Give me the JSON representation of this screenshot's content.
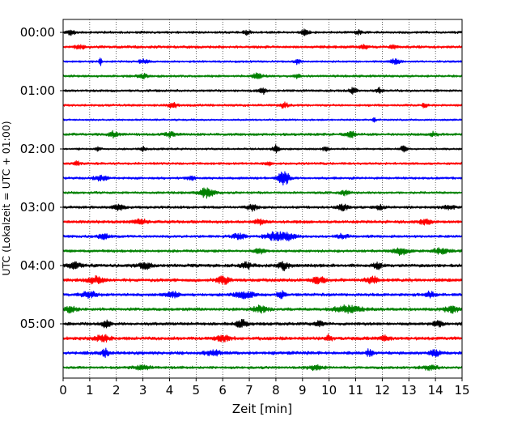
{
  "chart_data": {
    "type": "line",
    "subtype": "helicorder",
    "title": "",
    "xlabel": "Zeit  [min]",
    "ylabel": "UTC (Lokalzeit = UTC + 01:00)",
    "xlim": [
      0,
      15
    ],
    "x_ticks": [
      0,
      1,
      2,
      3,
      4,
      5,
      6,
      7,
      8,
      9,
      10,
      11,
      12,
      13,
      14,
      15
    ],
    "x_tick_labels": [
      "0",
      "1",
      "2",
      "3",
      "4",
      "5",
      "6",
      "7",
      "8",
      "9",
      "10",
      "11",
      "12",
      "13",
      "14",
      "15"
    ],
    "grid": {
      "vertical": true,
      "style": "dotted"
    },
    "y_tick_labels": [
      {
        "label": "00:00",
        "row": 0
      },
      {
        "label": "01:00",
        "row": 4
      },
      {
        "label": "02:00",
        "row": 8
      },
      {
        "label": "03:00",
        "row": 12
      },
      {
        "label": "04:00",
        "row": 16
      },
      {
        "label": "05:00",
        "row": 20
      }
    ],
    "row_minutes": 15,
    "color_cycle": [
      "#000000",
      "#ff0000",
      "#0000ff",
      "#008000"
    ],
    "rows": [
      {
        "start": "00:00",
        "color": "#000000",
        "base_amp": 1.6,
        "events": [
          [
            0.3,
            2.5,
            0.18
          ],
          [
            6.9,
            3.0,
            0.12
          ],
          [
            9.1,
            3.5,
            0.15
          ],
          [
            11.1,
            2.5,
            0.12
          ]
        ]
      },
      {
        "start": "00:15",
        "color": "#ff0000",
        "base_amp": 1.8,
        "events": [
          [
            0.6,
            2.0,
            0.2
          ],
          [
            11.3,
            3.0,
            0.15
          ],
          [
            12.4,
            2.5,
            0.12
          ]
        ]
      },
      {
        "start": "00:30",
        "color": "#0000ff",
        "base_amp": 1.4,
        "events": [
          [
            1.4,
            4.0,
            0.06
          ],
          [
            3.0,
            2.5,
            0.2
          ],
          [
            8.8,
            3.0,
            0.1
          ],
          [
            12.5,
            2.5,
            0.2
          ]
        ]
      },
      {
        "start": "00:45",
        "color": "#008000",
        "base_amp": 1.6,
        "events": [
          [
            3.0,
            2.5,
            0.2
          ],
          [
            7.3,
            3.0,
            0.2
          ],
          [
            8.8,
            2.5,
            0.1
          ]
        ]
      },
      {
        "start": "01:00",
        "color": "#000000",
        "base_amp": 1.6,
        "events": [
          [
            7.5,
            3.5,
            0.15
          ],
          [
            10.9,
            3.5,
            0.15
          ],
          [
            11.9,
            3.0,
            0.12
          ]
        ]
      },
      {
        "start": "01:15",
        "color": "#ff0000",
        "base_amp": 1.6,
        "events": [
          [
            4.1,
            3.0,
            0.18
          ],
          [
            8.3,
            3.0,
            0.15
          ],
          [
            13.6,
            2.5,
            0.12
          ]
        ]
      },
      {
        "start": "01:30",
        "color": "#0000ff",
        "base_amp": 1.2,
        "events": [
          [
            11.7,
            3.0,
            0.05
          ]
        ]
      },
      {
        "start": "01:45",
        "color": "#008000",
        "base_amp": 1.8,
        "events": [
          [
            1.9,
            3.5,
            0.2
          ],
          [
            4.0,
            2.5,
            0.2
          ],
          [
            10.8,
            3.5,
            0.2
          ],
          [
            13.9,
            2.5,
            0.15
          ]
        ]
      },
      {
        "start": "02:00",
        "color": "#000000",
        "base_amp": 1.4,
        "events": [
          [
            1.3,
            3.0,
            0.1
          ],
          [
            3.0,
            3.0,
            0.1
          ],
          [
            8.0,
            4.0,
            0.12
          ],
          [
            9.9,
            3.0,
            0.12
          ],
          [
            12.8,
            3.5,
            0.12
          ]
        ]
      },
      {
        "start": "02:15",
        "color": "#ff0000",
        "base_amp": 1.6,
        "events": [
          [
            0.5,
            2.5,
            0.15
          ],
          [
            7.7,
            2.5,
            0.12
          ]
        ]
      },
      {
        "start": "02:30",
        "color": "#0000ff",
        "base_amp": 1.6,
        "events": [
          [
            1.4,
            3.0,
            0.25
          ],
          [
            4.8,
            2.5,
            0.15
          ],
          [
            8.3,
            8.0,
            0.22
          ]
        ]
      },
      {
        "start": "02:45",
        "color": "#008000",
        "base_amp": 1.6,
        "events": [
          [
            5.4,
            5.5,
            0.3
          ],
          [
            10.6,
            2.5,
            0.2
          ]
        ]
      },
      {
        "start": "03:00",
        "color": "#000000",
        "base_amp": 1.8,
        "events": [
          [
            2.1,
            3.5,
            0.2
          ],
          [
            7.1,
            3.5,
            0.2
          ],
          [
            10.5,
            3.5,
            0.2
          ],
          [
            11.9,
            3.0,
            0.15
          ],
          [
            14.5,
            3.0,
            0.2
          ]
        ]
      },
      {
        "start": "03:15",
        "color": "#ff0000",
        "base_amp": 2.0,
        "events": [
          [
            2.9,
            3.0,
            0.25
          ],
          [
            7.4,
            3.0,
            0.2
          ],
          [
            13.6,
            3.0,
            0.2
          ]
        ]
      },
      {
        "start": "03:30",
        "color": "#0000ff",
        "base_amp": 1.8,
        "events": [
          [
            1.5,
            3.0,
            0.2
          ],
          [
            6.6,
            3.5,
            0.25
          ],
          [
            7.9,
            4.5,
            0.3
          ],
          [
            8.4,
            4.5,
            0.3
          ],
          [
            10.5,
            3.0,
            0.2
          ]
        ]
      },
      {
        "start": "03:45",
        "color": "#008000",
        "base_amp": 1.8,
        "events": [
          [
            7.4,
            3.0,
            0.2
          ],
          [
            12.7,
            4.0,
            0.3
          ],
          [
            14.2,
            3.5,
            0.3
          ]
        ]
      },
      {
        "start": "04:00",
        "color": "#000000",
        "base_amp": 2.2,
        "events": [
          [
            0.4,
            3.5,
            0.25
          ],
          [
            3.1,
            3.5,
            0.25
          ],
          [
            6.9,
            3.5,
            0.2
          ],
          [
            8.3,
            4.5,
            0.2
          ],
          [
            11.8,
            4.0,
            0.15
          ]
        ]
      },
      {
        "start": "04:15",
        "color": "#ff0000",
        "base_amp": 2.2,
        "events": [
          [
            1.2,
            4.0,
            0.3
          ],
          [
            6.0,
            4.0,
            0.25
          ],
          [
            9.6,
            3.5,
            0.25
          ],
          [
            11.6,
            3.5,
            0.25
          ]
        ]
      },
      {
        "start": "04:30",
        "color": "#0000ff",
        "base_amp": 2.0,
        "events": [
          [
            1.0,
            3.5,
            0.3
          ],
          [
            4.1,
            3.5,
            0.25
          ],
          [
            6.8,
            3.5,
            0.4
          ],
          [
            8.2,
            4.0,
            0.15
          ],
          [
            13.8,
            3.0,
            0.2
          ]
        ]
      },
      {
        "start": "04:45",
        "color": "#008000",
        "base_amp": 2.0,
        "events": [
          [
            0.3,
            3.5,
            0.25
          ],
          [
            7.4,
            3.5,
            0.3
          ],
          [
            10.7,
            4.0,
            0.5
          ],
          [
            14.6,
            3.5,
            0.3
          ]
        ]
      },
      {
        "start": "05:00",
        "color": "#000000",
        "base_amp": 2.0,
        "events": [
          [
            1.6,
            3.5,
            0.2
          ],
          [
            6.7,
            4.5,
            0.2
          ],
          [
            9.6,
            4.0,
            0.15
          ],
          [
            14.1,
            3.0,
            0.2
          ]
        ]
      },
      {
        "start": "05:15",
        "color": "#ff0000",
        "base_amp": 2.2,
        "events": [
          [
            1.5,
            3.5,
            0.3
          ],
          [
            6.0,
            3.0,
            0.3
          ],
          [
            10.0,
            4.0,
            0.1
          ],
          [
            12.1,
            3.0,
            0.2
          ]
        ]
      },
      {
        "start": "05:30",
        "color": "#0000ff",
        "base_amp": 2.2,
        "events": [
          [
            1.6,
            4.0,
            0.15
          ],
          [
            5.6,
            3.0,
            0.3
          ],
          [
            11.5,
            3.5,
            0.15
          ],
          [
            14.0,
            3.0,
            0.2
          ]
        ]
      },
      {
        "start": "05:45",
        "color": "#008000",
        "base_amp": 1.8,
        "events": [
          [
            3.0,
            2.5,
            0.3
          ],
          [
            9.5,
            2.5,
            0.3
          ],
          [
            13.8,
            2.5,
            0.3
          ]
        ]
      }
    ]
  }
}
